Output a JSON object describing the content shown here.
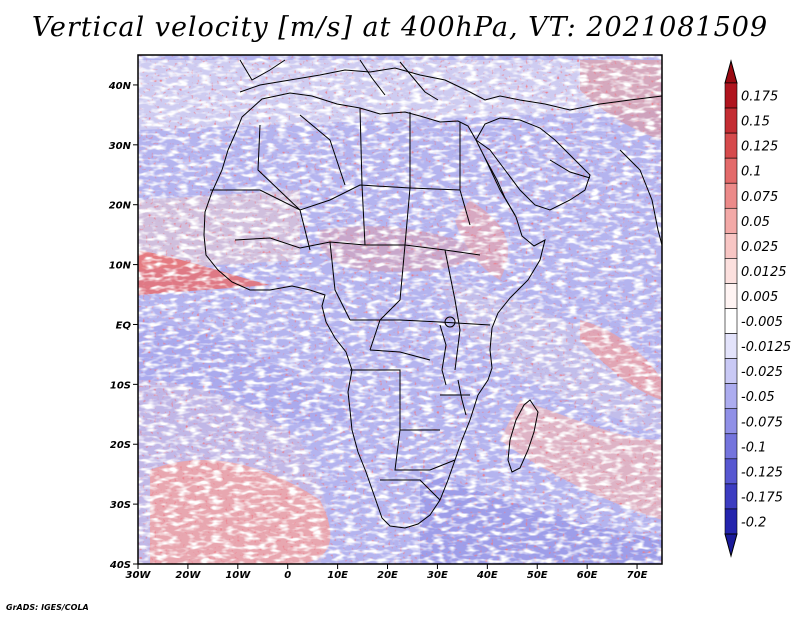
{
  "title": "Vertical velocity [m/s] at 400hPa, VT: 2021081509",
  "credit": "GrADS: IGES/COLA",
  "map": {
    "lon_range": [
      -30,
      75
    ],
    "lat_range": [
      -40,
      45
    ],
    "lat_ticks": [
      {
        "label": "40N",
        "lat": 40
      },
      {
        "label": "30N",
        "lat": 30
      },
      {
        "label": "20N",
        "lat": 20
      },
      {
        "label": "10N",
        "lat": 10
      },
      {
        "label": "EQ",
        "lat": 0
      },
      {
        "label": "10S",
        "lat": -10
      },
      {
        "label": "20S",
        "lat": -20
      },
      {
        "label": "30S",
        "lat": -30
      },
      {
        "label": "40S",
        "lat": -40
      }
    ],
    "lon_ticks": [
      {
        "label": "30W",
        "lon": -30
      },
      {
        "label": "20W",
        "lon": -20
      },
      {
        "label": "10W",
        "lon": -10
      },
      {
        "label": "0",
        "lon": 0
      },
      {
        "label": "10E",
        "lon": 10
      },
      {
        "label": "20E",
        "lon": 20
      },
      {
        "label": "30E",
        "lon": 30
      },
      {
        "label": "40E",
        "lon": 40
      },
      {
        "label": "50E",
        "lon": 50
      },
      {
        "label": "60E",
        "lon": 60
      },
      {
        "label": "70E",
        "lon": 70
      }
    ]
  },
  "colorbar": {
    "levels": [
      {
        "label": "0.175",
        "color": "#b0141e"
      },
      {
        "label": "0.15",
        "color": "#c42d33"
      },
      {
        "label": "0.125",
        "color": "#d64a4c"
      },
      {
        "label": "0.1",
        "color": "#e36a6a"
      },
      {
        "label": "0.075",
        "color": "#ec8a89"
      },
      {
        "label": "0.05",
        "color": "#f3a9a7"
      },
      {
        "label": "0.025",
        "color": "#f8c6c4"
      },
      {
        "label": "0.0125",
        "color": "#fce0de"
      },
      {
        "label": "0.005",
        "color": "#fff4f3"
      },
      {
        "label": "-0.005",
        "color": "#ffffff"
      },
      {
        "label": "-0.0125",
        "color": "#e3e3fb"
      },
      {
        "label": "-0.025",
        "color": "#c9c9f5"
      },
      {
        "label": "-0.05",
        "color": "#acacef"
      },
      {
        "label": "-0.075",
        "color": "#9090e7"
      },
      {
        "label": "-0.1",
        "color": "#7474dd"
      },
      {
        "label": "-0.125",
        "color": "#5757d1"
      },
      {
        "label": "-0.175",
        "color": "#3c3cc1"
      },
      {
        "label": "-0.2",
        "color": "#2424ad"
      }
    ],
    "top_color": "#9a0a12",
    "bottom_color": "#1a1a9a"
  }
}
